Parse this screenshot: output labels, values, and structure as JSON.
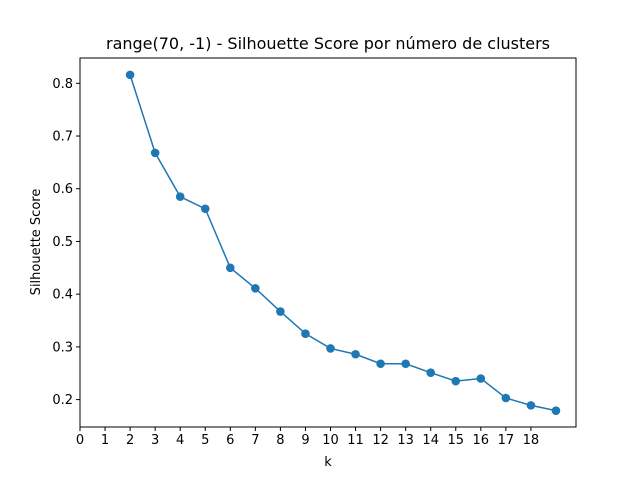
{
  "chart_data": {
    "type": "line",
    "title": "range(70, -1) - Silhouette Score por número de clusters",
    "xlabel": "k",
    "ylabel": "Silhouette Score",
    "x_ticks": [
      0,
      1,
      2,
      3,
      4,
      5,
      6,
      7,
      8,
      9,
      10,
      11,
      12,
      13,
      14,
      15,
      16,
      17,
      18
    ],
    "y_ticks": [
      0.2,
      0.3,
      0.4,
      0.5,
      0.6,
      0.7,
      0.8
    ],
    "xlim": [
      0,
      19.8
    ],
    "ylim": [
      0.148,
      0.848
    ],
    "grid": false,
    "marker": "circle",
    "series": [
      {
        "color": "#1f77b4",
        "x": [
          2,
          3,
          4,
          5,
          6,
          7,
          8,
          9,
          10,
          11,
          12,
          13,
          14,
          15,
          16,
          17,
          18,
          19
        ],
        "values": [
          0.816,
          0.668,
          0.585,
          0.562,
          0.45,
          0.411,
          0.367,
          0.325,
          0.297,
          0.286,
          0.268,
          0.268,
          0.251,
          0.235,
          0.24,
          0.203,
          0.189,
          0.179
        ]
      }
    ]
  }
}
